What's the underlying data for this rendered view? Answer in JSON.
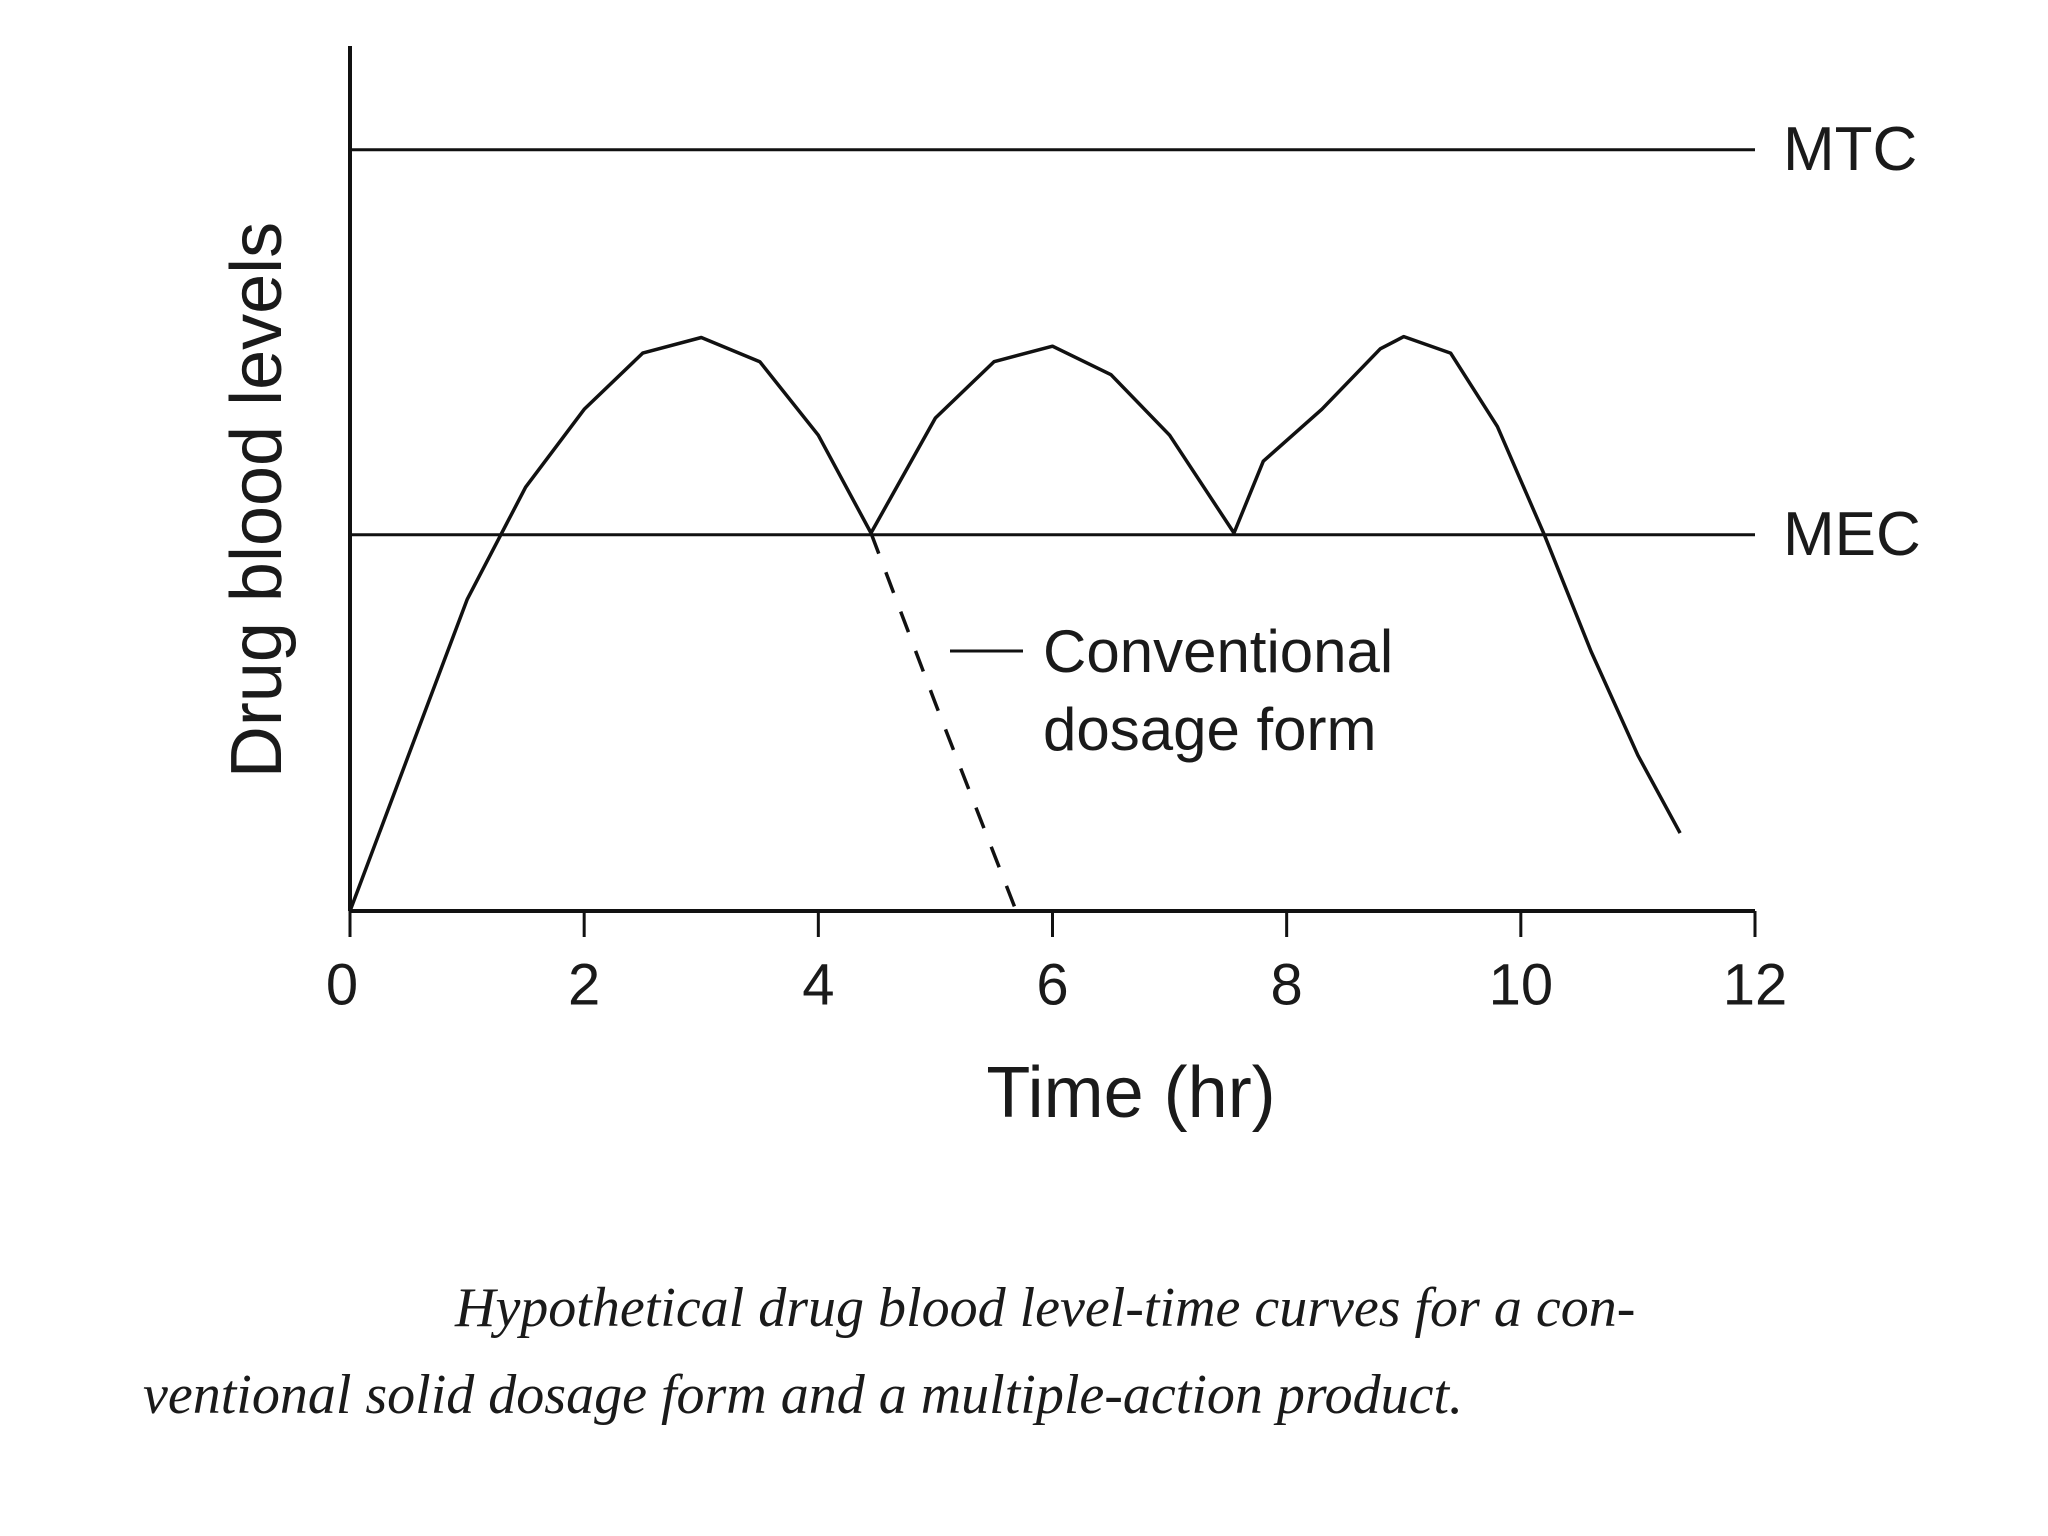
{
  "chart_data": {
    "type": "line",
    "xlabel": "Time (hr)",
    "ylabel": "Drug blood levels",
    "xlim": [
      0,
      12
    ],
    "xticks": [
      0,
      2,
      4,
      6,
      8,
      10,
      12
    ],
    "ylim": [
      0,
      100
    ],
    "series": [
      {
        "color": "#111111",
        "style": "solid",
        "x": [
          0,
          0.5,
          1,
          1.5,
          2,
          2.5,
          3,
          3.5,
          4,
          4.45,
          5,
          5.5,
          6,
          6.5,
          7,
          7.55,
          7.8,
          8.3,
          8.8,
          9,
          9.4,
          9.8,
          10.2,
          10.6,
          11,
          11.36
        ],
        "values": [
          0,
          18,
          36,
          49,
          58,
          64.5,
          66.3,
          63.5,
          55,
          43.7,
          57,
          63.5,
          65.3,
          62,
          55,
          43.7,
          52,
          58,
          65,
          66.4,
          64.5,
          56,
          43.5,
          30,
          18,
          9
        ]
      },
      {
        "color": "#111111",
        "style": "dashed",
        "x": [
          4.45,
          5,
          5.69
        ],
        "values": [
          43.7,
          24,
          0
        ]
      }
    ],
    "reference_lines": [
      {
        "label": "MTC",
        "value": 88
      },
      {
        "label": "MEC",
        "value": 43.5
      }
    ],
    "annotation": [
      "Conventional",
      "dosage form"
    ],
    "caption": [
      "Hypothetical drug blood level-time curves for a con-",
      "ventional solid dosage form and a multiple-action product."
    ]
  }
}
